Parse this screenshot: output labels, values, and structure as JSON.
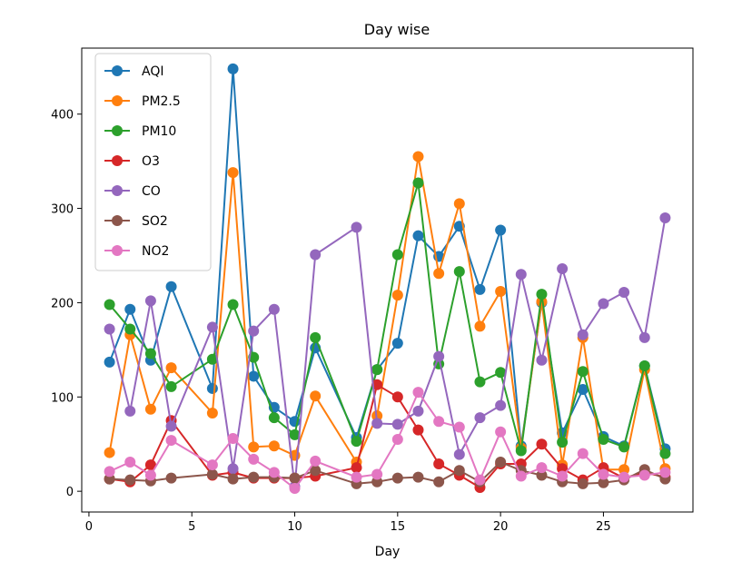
{
  "chart_data": {
    "type": "line",
    "title": "Day wise",
    "xlabel": "Day",
    "ylabel": "",
    "xlim": [
      -0.35,
      29.35
    ],
    "ylim": [
      -22,
      470
    ],
    "xticks": [
      0,
      5,
      10,
      15,
      20,
      25
    ],
    "yticks": [
      0,
      100,
      200,
      300,
      400
    ],
    "legend_position": "upper-left",
    "x": [
      1,
      2,
      3,
      4,
      6,
      7,
      8,
      9,
      10,
      11,
      13,
      14,
      15,
      16,
      17,
      18,
      19,
      20,
      21,
      22,
      23,
      24,
      25,
      26,
      27,
      28
    ],
    "series": [
      {
        "name": "AQI",
        "color": "#1f77b4",
        "values": [
          137,
          193,
          139,
          217,
          109,
          448,
          122,
          89,
          74,
          152,
          57,
          129,
          157,
          271,
          249,
          281,
          214,
          277,
          48,
          200,
          62,
          108,
          58,
          48,
          133,
          45
        ]
      },
      {
        "name": "PM2.5",
        "color": "#ff7f0e",
        "values": [
          41,
          166,
          87,
          131,
          83,
          338,
          47,
          48,
          38,
          101,
          31,
          80,
          208,
          355,
          231,
          305,
          175,
          212,
          46,
          201,
          28,
          163,
          23,
          23,
          129,
          24
        ]
      },
      {
        "name": "PM10",
        "color": "#2ca02c",
        "values": [
          198,
          172,
          146,
          111,
          140,
          198,
          142,
          78,
          60,
          163,
          53,
          129,
          251,
          327,
          135,
          233,
          116,
          126,
          43,
          209,
          52,
          127,
          55,
          47,
          133,
          40
        ]
      },
      {
        "name": "O3",
        "color": "#d62728",
        "values": [
          13,
          10,
          28,
          75,
          17,
          20,
          14,
          14,
          14,
          16,
          25,
          113,
          100,
          65,
          29,
          17,
          4,
          29,
          29,
          50,
          24,
          12,
          25,
          14,
          20,
          15
        ]
      },
      {
        "name": "CO",
        "color": "#9467bd",
        "values": [
          172,
          85,
          202,
          69,
          174,
          24,
          170,
          193,
          5,
          251,
          280,
          72,
          71,
          85,
          143,
          39,
          78,
          91,
          230,
          139,
          236,
          166,
          199,
          211,
          163,
          290
        ]
      },
      {
        "name": "SO2",
        "color": "#8c564b",
        "values": [
          13,
          12,
          11,
          14,
          18,
          13,
          15,
          15,
          14,
          22,
          8,
          10,
          14,
          15,
          10,
          22,
          10,
          31,
          22,
          17,
          10,
          8,
          9,
          12,
          23,
          13
        ]
      },
      {
        "name": "NO2",
        "color": "#e377c2",
        "values": [
          21,
          31,
          17,
          54,
          28,
          56,
          34,
          20,
          3,
          32,
          15,
          18,
          55,
          105,
          74,
          68,
          12,
          63,
          16,
          25,
          16,
          40,
          18,
          15,
          17,
          20
        ]
      }
    ]
  }
}
